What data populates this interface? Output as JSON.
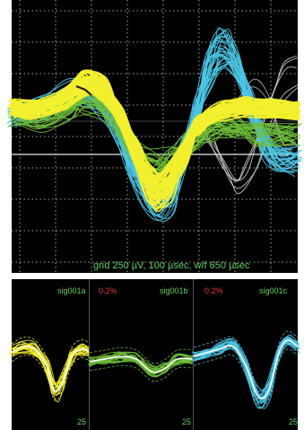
{
  "main_panel": {
    "grid_label": "grid 250 µV, 100 µsec, w/f 650 µsec"
  },
  "units": [
    {
      "name": "sig001a",
      "percent": "",
      "count": "25",
      "color": "#f2ef2f"
    },
    {
      "name": "sig001b",
      "percent": "0.2%",
      "count": "25",
      "color": "#6fbf3a"
    },
    {
      "name": "sig001c",
      "percent": "0.2%",
      "count": "25",
      "color": "#4cc7e6"
    }
  ],
  "colors": {
    "background": "#000000",
    "grid": "#cfcfcf",
    "label_green": "#5fd05f",
    "label_red": "#e23a3a",
    "overlap_trace": "#d9d9d9"
  }
}
